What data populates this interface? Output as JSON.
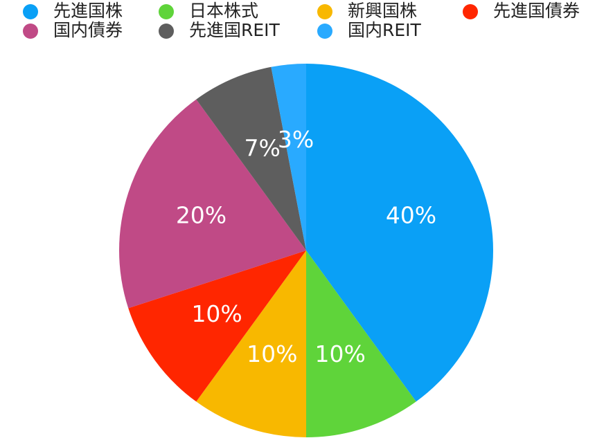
{
  "chart_data": {
    "type": "pie",
    "categories": [
      "先進国株",
      "日本株式",
      "新興国株",
      "先進国債券",
      "国内債券",
      "先進国REIT",
      "国内REIT"
    ],
    "values": [
      40,
      10,
      10,
      10,
      20,
      7,
      3
    ],
    "value_labels": [
      "40%",
      "10%",
      "10%",
      "10%",
      "20%",
      "7%",
      "3%"
    ],
    "colors": [
      "#0aa0f6",
      "#5fd43a",
      "#f8b800",
      "#ff2600",
      "#c04a86",
      "#5e5e5e",
      "#29aaff"
    ],
    "legend": "top"
  }
}
